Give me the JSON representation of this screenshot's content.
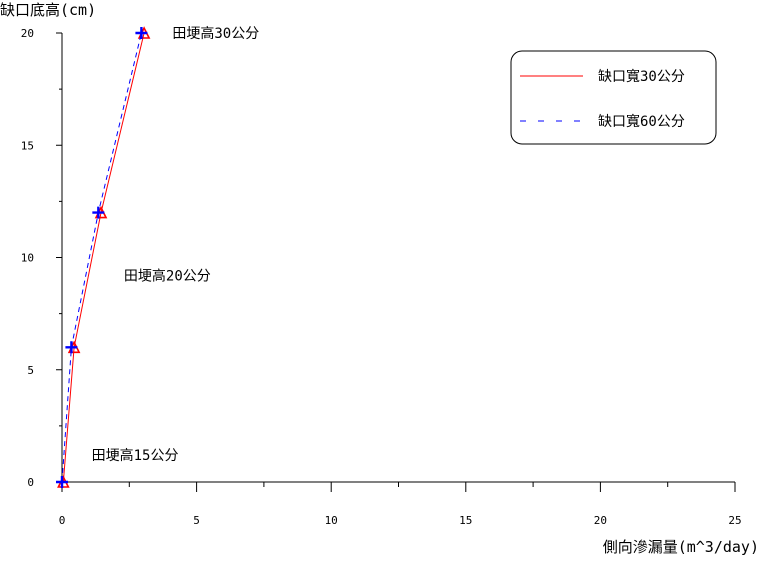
{
  "chart_data": {
    "type": "line",
    "title": "",
    "ylabel": "缺口底高(cm)",
    "xlabel": "側向滲漏量(m^3/day)",
    "xlim": [
      0,
      25
    ],
    "ylim": [
      0,
      20
    ],
    "x_ticks": [
      0,
      5,
      10,
      15,
      20,
      25
    ],
    "y_ticks": [
      0,
      5,
      10,
      15,
      20
    ],
    "grid": false,
    "legend_position": "top-right",
    "series": [
      {
        "name": "缺口寬30公分",
        "color": "#ff0000",
        "line_style": "solid",
        "marker": "triangle",
        "x": [
          0.05,
          0.45,
          1.45,
          3.05
        ],
        "y": [
          0,
          6,
          12,
          20
        ]
      },
      {
        "name": "缺口寬60公分",
        "color": "#0000ff",
        "line_style": "dashed",
        "marker": "plus",
        "x": [
          0.0,
          0.35,
          1.35,
          2.95
        ],
        "y": [
          0,
          6,
          12,
          20
        ]
      }
    ],
    "annotations": [
      {
        "text": "田埂高30公分",
        "x": 4.1,
        "y": 20
      },
      {
        "text": "田埂高20公分",
        "x": 2.3,
        "y": 9.2
      },
      {
        "text": "田埂高15公分",
        "x": 1.1,
        "y": 1.2
      }
    ]
  }
}
